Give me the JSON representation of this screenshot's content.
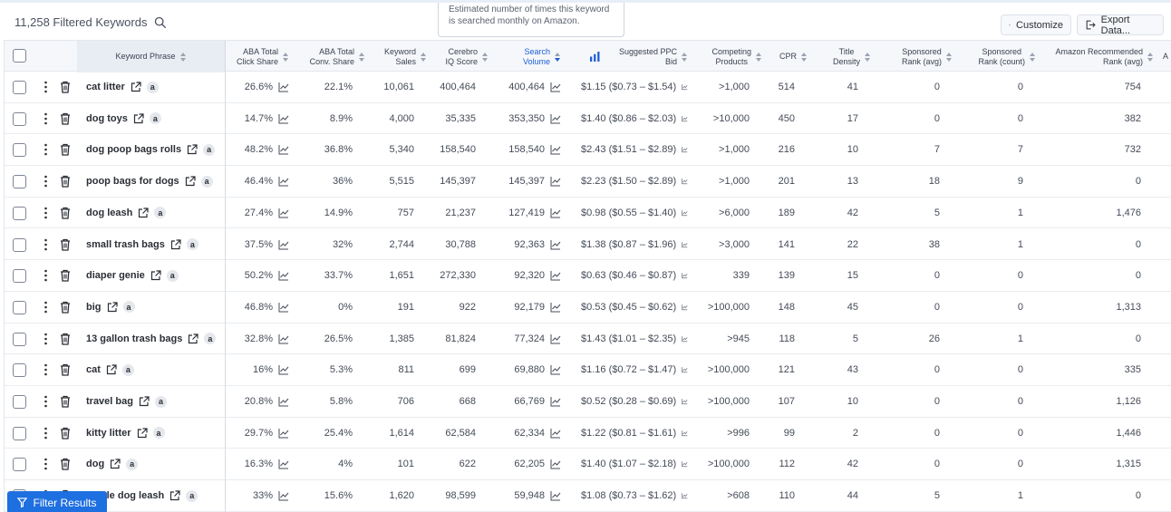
{
  "header": {
    "filtered_count": "11,258 Filtered Keywords",
    "tooltip": "Estimated number of times this keyword is searched monthly on Amazon.",
    "customize_label": "Customize",
    "export_label": "Export Data..."
  },
  "columns": {
    "keyword": "Keyword Phrase",
    "aba_click": [
      "ABA Total",
      "Click Share"
    ],
    "aba_conv": [
      "ABA Total",
      "Conv. Share"
    ],
    "kw_sales": [
      "Keyword",
      "Sales"
    ],
    "cerebro": [
      "Cerebro",
      "IQ Score"
    ],
    "search_vol": [
      "Search",
      "Volume"
    ],
    "ppc": "Suggested PPC Bid",
    "competing": [
      "Competing",
      "Products"
    ],
    "cpr": "CPR",
    "title_density": [
      "Title",
      "Density"
    ],
    "sp_rank_avg": [
      "Sponsored",
      "Rank (avg)"
    ],
    "sp_rank_count": [
      "Sponsored",
      "Rank (count)"
    ],
    "amz_rec": [
      "Amazon Recommended",
      "Rank (avg)"
    ],
    "extra": "A"
  },
  "rows": [
    {
      "keyword": "cat litter",
      "aba_click": "26.6%",
      "aba_conv": "22.1%",
      "sales": "10,061",
      "iq": "400,464",
      "sv": "400,464",
      "ppc": "$1.15 ($0.73 – $1.54)",
      "comp": ">1,000",
      "cpr": "514",
      "td": "41",
      "spa": "0",
      "spc": "0",
      "arr": "754"
    },
    {
      "keyword": "dog toys",
      "aba_click": "14.7%",
      "aba_conv": "8.9%",
      "sales": "4,000",
      "iq": "35,335",
      "sv": "353,350",
      "ppc": "$1.40 ($0.86 – $2.03)",
      "comp": ">10,000",
      "cpr": "450",
      "td": "17",
      "spa": "0",
      "spc": "0",
      "arr": "382"
    },
    {
      "keyword": "dog poop bags rolls",
      "aba_click": "48.2%",
      "aba_conv": "36.8%",
      "sales": "5,340",
      "iq": "158,540",
      "sv": "158,540",
      "ppc": "$2.43 ($1.51 – $2.89)",
      "comp": ">1,000",
      "cpr": "216",
      "td": "10",
      "spa": "7",
      "spc": "7",
      "arr": "732"
    },
    {
      "keyword": "poop bags for dogs",
      "aba_click": "46.4%",
      "aba_conv": "36%",
      "sales": "5,515",
      "iq": "145,397",
      "sv": "145,397",
      "ppc": "$2.23 ($1.50 – $2.89)",
      "comp": ">1,000",
      "cpr": "201",
      "td": "13",
      "spa": "18",
      "spc": "9",
      "arr": "0"
    },
    {
      "keyword": "dog leash",
      "aba_click": "27.4%",
      "aba_conv": "14.9%",
      "sales": "757",
      "iq": "21,237",
      "sv": "127,419",
      "ppc": "$0.98 ($0.55 – $1.40)",
      "comp": ">6,000",
      "cpr": "189",
      "td": "42",
      "spa": "5",
      "spc": "1",
      "arr": "1,476"
    },
    {
      "keyword": "small trash bags",
      "aba_click": "37.5%",
      "aba_conv": "32%",
      "sales": "2,744",
      "iq": "30,788",
      "sv": "92,363",
      "ppc": "$1.38 ($0.87 – $1.96)",
      "comp": ">3,000",
      "cpr": "141",
      "td": "22",
      "spa": "38",
      "spc": "1",
      "arr": "0"
    },
    {
      "keyword": "diaper genie",
      "aba_click": "50.2%",
      "aba_conv": "33.7%",
      "sales": "1,651",
      "iq": "272,330",
      "sv": "92,320",
      "ppc": "$0.63 ($0.46 – $0.87)",
      "comp": "339",
      "cpr": "139",
      "td": "15",
      "spa": "0",
      "spc": "0",
      "arr": "0"
    },
    {
      "keyword": "big",
      "aba_click": "46.8%",
      "aba_conv": "0%",
      "sales": "191",
      "iq": "922",
      "sv": "92,179",
      "ppc": "$0.53 ($0.45 – $0.62)",
      "comp": ">100,000",
      "cpr": "148",
      "td": "45",
      "spa": "0",
      "spc": "0",
      "arr": "1,313"
    },
    {
      "keyword": "13 gallon trash bags",
      "aba_click": "32.8%",
      "aba_conv": "26.5%",
      "sales": "1,385",
      "iq": "81,824",
      "sv": "77,324",
      "ppc": "$1.43 ($1.01 – $2.35)",
      "comp": ">945",
      "cpr": "118",
      "td": "5",
      "spa": "26",
      "spc": "1",
      "arr": "0"
    },
    {
      "keyword": "cat",
      "aba_click": "16%",
      "aba_conv": "5.3%",
      "sales": "811",
      "iq": "699",
      "sv": "69,880",
      "ppc": "$1.16 ($0.72 – $1.47)",
      "comp": ">100,000",
      "cpr": "121",
      "td": "43",
      "spa": "0",
      "spc": "0",
      "arr": "335"
    },
    {
      "keyword": "travel bag",
      "aba_click": "20.8%",
      "aba_conv": "5.8%",
      "sales": "706",
      "iq": "668",
      "sv": "66,769",
      "ppc": "$0.52 ($0.28 – $0.69)",
      "comp": ">100,000",
      "cpr": "107",
      "td": "10",
      "spa": "0",
      "spc": "0",
      "arr": "1,126"
    },
    {
      "keyword": "kitty litter",
      "aba_click": "29.7%",
      "aba_conv": "25.4%",
      "sales": "1,614",
      "iq": "62,584",
      "sv": "62,334",
      "ppc": "$1.22 ($0.81 – $1.61)",
      "comp": ">996",
      "cpr": "99",
      "td": "2",
      "spa": "0",
      "spc": "0",
      "arr": "1,446"
    },
    {
      "keyword": "dog",
      "aba_click": "16.3%",
      "aba_conv": "4%",
      "sales": "101",
      "iq": "622",
      "sv": "62,205",
      "ppc": "$1.40 ($1.07 – $2.18)",
      "comp": ">100,000",
      "cpr": "112",
      "td": "42",
      "spa": "0",
      "spc": "0",
      "arr": "1,315"
    },
    {
      "keyword": "ctable dog leash",
      "aba_click": "33%",
      "aba_conv": "15.6%",
      "sales": "1,620",
      "iq": "98,599",
      "sv": "59,948",
      "ppc": "$1.08 ($0.73 – $1.62)",
      "comp": ">608",
      "cpr": "110",
      "td": "44",
      "spa": "5",
      "spc": "1",
      "arr": "0"
    }
  ],
  "amazon_glyph": "a",
  "filter_label": "Filter Results",
  "icons": [
    "search-icon",
    "gear-icon",
    "export-icon",
    "more-vertical-icon",
    "trash-icon",
    "external-link-icon",
    "chart-icon",
    "filter-icon",
    "bid-chart-icon"
  ]
}
